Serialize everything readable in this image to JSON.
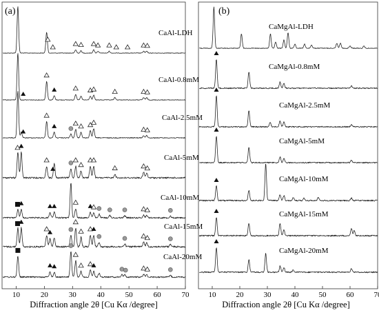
{
  "chart_data": [
    {
      "type": "line",
      "panel_label": "(a)",
      "xlabel": "Diffraction angle 2θ [Cu Kα /degree]",
      "xlim": [
        5,
        70
      ],
      "x_ticks": [
        10,
        20,
        30,
        40,
        50,
        60,
        70
      ],
      "y_ticks": false,
      "series": [
        {
          "name": "CaAl-LDH",
          "peaks": [
            {
              "x": 10.6,
              "h": 1.0
            },
            {
              "x": 20.8,
              "h": 0.45
            },
            {
              "x": 31.1,
              "h": 0.07
            },
            {
              "x": 33.0,
              "h": 0.05
            },
            {
              "x": 37.5,
              "h": 0.07
            },
            {
              "x": 39.0,
              "h": 0.04
            },
            {
              "x": 43.0,
              "h": 0.04
            },
            {
              "x": 55.2,
              "h": 0.04
            },
            {
              "x": 56.3,
              "h": 0.04
            }
          ]
        },
        {
          "name": "CaAl-0.8mM",
          "peaks": [
            {
              "x": 10.6,
              "h": 1.0
            },
            {
              "x": 20.8,
              "h": 0.4
            },
            {
              "x": 23.5,
              "h": 0.09
            },
            {
              "x": 31.1,
              "h": 0.12
            },
            {
              "x": 33.0,
              "h": 0.08
            },
            {
              "x": 36.3,
              "h": 0.08
            },
            {
              "x": 37.5,
              "h": 0.1
            },
            {
              "x": 45.0,
              "h": 0.05
            },
            {
              "x": 55.2,
              "h": 0.05
            },
            {
              "x": 56.3,
              "h": 0.05
            }
          ]
        },
        {
          "name": "CaAl-2.5mM",
          "peaks": [
            {
              "x": 10.6,
              "h": 1.0
            },
            {
              "x": 11.8,
              "h": 0.12
            },
            {
              "x": 20.8,
              "h": 0.35
            },
            {
              "x": 23.5,
              "h": 0.12
            },
            {
              "x": 29.4,
              "h": 0.08
            },
            {
              "x": 31.1,
              "h": 0.18
            },
            {
              "x": 33.0,
              "h": 0.12
            },
            {
              "x": 36.3,
              "h": 0.15
            },
            {
              "x": 37.5,
              "h": 0.2
            },
            {
              "x": 55.2,
              "h": 0.05
            },
            {
              "x": 56.3,
              "h": 0.05
            }
          ]
        },
        {
          "name": "CaAl-5mM",
          "peaks": [
            {
              "x": 10.6,
              "h": 0.55
            },
            {
              "x": 11.8,
              "h": 0.55
            },
            {
              "x": 20.8,
              "h": 0.25
            },
            {
              "x": 23.5,
              "h": 0.3
            },
            {
              "x": 29.4,
              "h": 0.2
            },
            {
              "x": 31.1,
              "h": 0.25
            },
            {
              "x": 33.0,
              "h": 0.15
            },
            {
              "x": 36.3,
              "h": 0.25
            },
            {
              "x": 37.5,
              "h": 0.25
            },
            {
              "x": 45.0,
              "h": 0.08
            },
            {
              "x": 55.2,
              "h": 0.12
            },
            {
              "x": 56.3,
              "h": 0.1
            }
          ]
        },
        {
          "name": "CaAl-10mM",
          "peaks": [
            {
              "x": 10.6,
              "h": 0.18
            },
            {
              "x": 11.8,
              "h": 0.18
            },
            {
              "x": 22.0,
              "h": 0.12
            },
            {
              "x": 23.5,
              "h": 0.12
            },
            {
              "x": 29.4,
              "h": 0.75
            },
            {
              "x": 31.1,
              "h": 0.2
            },
            {
              "x": 36.3,
              "h": 0.12
            },
            {
              "x": 37.5,
              "h": 0.1
            },
            {
              "x": 39.4,
              "h": 0.08
            },
            {
              "x": 43.2,
              "h": 0.05
            },
            {
              "x": 48.5,
              "h": 0.05
            },
            {
              "x": 55.2,
              "h": 0.06
            },
            {
              "x": 56.3,
              "h": 0.05
            },
            {
              "x": 64.7,
              "h": 0.04
            }
          ]
        },
        {
          "name": "CaAl-15mM",
          "peaks": [
            {
              "x": 10.6,
              "h": 0.4
            },
            {
              "x": 11.8,
              "h": 0.4
            },
            {
              "x": 20.8,
              "h": 0.25
            },
            {
              "x": 22.0,
              "h": 0.18
            },
            {
              "x": 23.5,
              "h": 0.2
            },
            {
              "x": 29.4,
              "h": 0.25
            },
            {
              "x": 31.1,
              "h": 0.4
            },
            {
              "x": 33.0,
              "h": 0.2
            },
            {
              "x": 36.3,
              "h": 0.25
            },
            {
              "x": 37.5,
              "h": 0.25
            },
            {
              "x": 39.4,
              "h": 0.1
            },
            {
              "x": 48.5,
              "h": 0.06
            },
            {
              "x": 55.2,
              "h": 0.1
            },
            {
              "x": 56.3,
              "h": 0.08
            },
            {
              "x": 64.7,
              "h": 0.05
            }
          ]
        },
        {
          "name": "CaAl-20mM",
          "peaks": [
            {
              "x": 10.6,
              "h": 0.45
            },
            {
              "x": 22.0,
              "h": 0.12
            },
            {
              "x": 23.5,
              "h": 0.1
            },
            {
              "x": 29.4,
              "h": 0.55
            },
            {
              "x": 31.1,
              "h": 0.35
            },
            {
              "x": 33.0,
              "h": 0.12
            },
            {
              "x": 36.3,
              "h": 0.15
            },
            {
              "x": 37.5,
              "h": 0.12
            },
            {
              "x": 39.4,
              "h": 0.08
            },
            {
              "x": 47.5,
              "h": 0.05
            },
            {
              "x": 48.5,
              "h": 0.05
            },
            {
              "x": 55.2,
              "h": 0.06
            },
            {
              "x": 56.3,
              "h": 0.05
            },
            {
              "x": 64.7,
              "h": 0.04
            }
          ]
        }
      ]
    },
    {
      "type": "line",
      "panel_label": "(b)",
      "xlabel": "Diffraction angle 2θ [Cu Kα /degree]",
      "xlim": [
        5,
        70
      ],
      "x_ticks": [
        10,
        20,
        30,
        40,
        50,
        60,
        70
      ],
      "y_ticks": false,
      "series": [
        {
          "name": "CaMgAl-LDH",
          "peaks": [
            {
              "x": 10.6,
              "h": 1.0
            },
            {
              "x": 20.6,
              "h": 0.35
            },
            {
              "x": 31.1,
              "h": 0.35
            },
            {
              "x": 33.0,
              "h": 0.15
            },
            {
              "x": 36.0,
              "h": 0.2
            },
            {
              "x": 37.5,
              "h": 0.38
            },
            {
              "x": 40.0,
              "h": 0.1
            },
            {
              "x": 43.5,
              "h": 0.1
            },
            {
              "x": 46.0,
              "h": 0.08
            },
            {
              "x": 55.2,
              "h": 0.12
            },
            {
              "x": 56.5,
              "h": 0.12
            },
            {
              "x": 60.0,
              "h": 0.06
            },
            {
              "x": 65.0,
              "h": 0.05
            }
          ]
        },
        {
          "name": "CaMgAl-0.8mM",
          "peaks": [
            {
              "x": 11.5,
              "h": 0.7
            },
            {
              "x": 23.3,
              "h": 0.4
            },
            {
              "x": 34.6,
              "h": 0.15
            },
            {
              "x": 36.0,
              "h": 0.12
            },
            {
              "x": 60.5,
              "h": 0.06
            }
          ]
        },
        {
          "name": "CaMgAl-2.5mM",
          "peaks": [
            {
              "x": 11.5,
              "h": 0.75
            },
            {
              "x": 23.3,
              "h": 0.4
            },
            {
              "x": 31.0,
              "h": 0.1
            },
            {
              "x": 34.6,
              "h": 0.15
            },
            {
              "x": 36.0,
              "h": 0.12
            },
            {
              "x": 60.5,
              "h": 0.06
            }
          ]
        },
        {
          "name": "CaMgAl-5mM",
          "peaks": [
            {
              "x": 11.5,
              "h": 0.65
            },
            {
              "x": 23.3,
              "h": 0.38
            },
            {
              "x": 34.6,
              "h": 0.14
            },
            {
              "x": 36.0,
              "h": 0.1
            },
            {
              "x": 60.5,
              "h": 0.06
            }
          ]
        },
        {
          "name": "CaMgAl-10mM",
          "peaks": [
            {
              "x": 11.5,
              "h": 0.35
            },
            {
              "x": 23.3,
              "h": 0.25
            },
            {
              "x": 29.4,
              "h": 0.9
            },
            {
              "x": 34.6,
              "h": 0.15
            },
            {
              "x": 36.0,
              "h": 0.12
            },
            {
              "x": 39.4,
              "h": 0.08
            },
            {
              "x": 43.2,
              "h": 0.06
            },
            {
              "x": 48.5,
              "h": 0.08
            },
            {
              "x": 60.5,
              "h": 0.06
            }
          ]
        },
        {
          "name": "CaMgAl-15mM",
          "peaks": [
            {
              "x": 11.5,
              "h": 0.45
            },
            {
              "x": 23.3,
              "h": 0.3
            },
            {
              "x": 34.6,
              "h": 0.3
            },
            {
              "x": 36.0,
              "h": 0.15
            },
            {
              "x": 60.5,
              "h": 0.18
            },
            {
              "x": 61.5,
              "h": 0.12
            }
          ]
        },
        {
          "name": "CaMgAl-20mM",
          "peaks": [
            {
              "x": 11.5,
              "h": 0.6
            },
            {
              "x": 23.3,
              "h": 0.3
            },
            {
              "x": 29.4,
              "h": 0.45
            },
            {
              "x": 34.6,
              "h": 0.15
            },
            {
              "x": 36.0,
              "h": 0.12
            },
            {
              "x": 39.4,
              "h": 0.06
            },
            {
              "x": 60.5,
              "h": 0.08
            }
          ]
        }
      ]
    }
  ],
  "markers_a": [
    {
      "series": 0,
      "x": 21.2,
      "shape": "open-triangle"
    },
    {
      "series": 0,
      "x": 23.0,
      "shape": "open-triangle"
    },
    {
      "series": 0,
      "x": 31.1,
      "shape": "open-triangle"
    },
    {
      "series": 0,
      "x": 33.0,
      "shape": "open-triangle"
    },
    {
      "series": 0,
      "x": 37.5,
      "shape": "open-triangle"
    },
    {
      "series": 0,
      "x": 39.0,
      "shape": "open-triangle"
    },
    {
      "series": 0,
      "x": 43.0,
      "shape": "open-triangle"
    },
    {
      "series": 0,
      "x": 45.5,
      "shape": "open-triangle"
    },
    {
      "series": 0,
      "x": 49.5,
      "shape": "open-triangle"
    },
    {
      "series": 0,
      "x": 55.2,
      "shape": "open-triangle"
    },
    {
      "series": 0,
      "x": 56.5,
      "shape": "open-triangle"
    },
    {
      "series": 1,
      "x": 12.5,
      "shape": "filled-triangle"
    },
    {
      "series": 1,
      "x": 20.8,
      "shape": "open-triangle"
    },
    {
      "series": 1,
      "x": 23.5,
      "shape": "filled-triangle"
    },
    {
      "series": 1,
      "x": 31.1,
      "shape": "open-triangle"
    },
    {
      "series": 1,
      "x": 36.3,
      "shape": "open-triangle"
    },
    {
      "series": 1,
      "x": 37.5,
      "shape": "open-triangle"
    },
    {
      "series": 1,
      "x": 45.0,
      "shape": "open-triangle"
    },
    {
      "series": 1,
      "x": 55.2,
      "shape": "open-triangle"
    },
    {
      "series": 1,
      "x": 56.5,
      "shape": "open-triangle"
    },
    {
      "series": 2,
      "x": 12.5,
      "shape": "filled-triangle"
    },
    {
      "series": 2,
      "x": 20.8,
      "shape": "open-triangle"
    },
    {
      "series": 2,
      "x": 23.5,
      "shape": "filled-triangle"
    },
    {
      "series": 2,
      "x": 29.4,
      "shape": "gray-circle"
    },
    {
      "series": 2,
      "x": 31.1,
      "shape": "open-triangle"
    },
    {
      "series": 2,
      "x": 33.0,
      "shape": "open-triangle"
    },
    {
      "series": 2,
      "x": 36.3,
      "shape": "open-triangle"
    },
    {
      "series": 2,
      "x": 37.5,
      "shape": "open-triangle"
    },
    {
      "series": 2,
      "x": 55.2,
      "shape": "open-triangle"
    },
    {
      "series": 2,
      "x": 56.5,
      "shape": "open-triangle"
    },
    {
      "series": 3,
      "x": 10.5,
      "shape": "open-triangle"
    },
    {
      "series": 3,
      "x": 11.8,
      "shape": "filled-triangle"
    },
    {
      "series": 3,
      "x": 20.8,
      "shape": "open-triangle"
    },
    {
      "series": 3,
      "x": 23.0,
      "shape": "filled-triangle"
    },
    {
      "series": 3,
      "x": 29.4,
      "shape": "gray-circle"
    },
    {
      "series": 3,
      "x": 31.1,
      "shape": "open-triangle"
    },
    {
      "series": 3,
      "x": 33.0,
      "shape": "open-triangle"
    },
    {
      "series": 3,
      "x": 36.3,
      "shape": "open-triangle"
    },
    {
      "series": 3,
      "x": 37.5,
      "shape": "open-triangle"
    },
    {
      "series": 3,
      "x": 45.0,
      "shape": "open-triangle"
    },
    {
      "series": 3,
      "x": 55.2,
      "shape": "open-triangle"
    },
    {
      "series": 3,
      "x": 56.5,
      "shape": "open-triangle"
    },
    {
      "series": 4,
      "x": 10.5,
      "shape": "filled-square"
    },
    {
      "series": 4,
      "x": 11.8,
      "shape": "filled-triangle"
    },
    {
      "series": 4,
      "x": 22.0,
      "shape": "filled-triangle"
    },
    {
      "series": 4,
      "x": 23.5,
      "shape": "filled-triangle"
    },
    {
      "series": 4,
      "x": 31.1,
      "shape": "open-triangle"
    },
    {
      "series": 4,
      "x": 36.3,
      "shape": "filled-triangle"
    },
    {
      "series": 4,
      "x": 37.5,
      "shape": "open-triangle"
    },
    {
      "series": 4,
      "x": 39.4,
      "shape": "gray-circle"
    },
    {
      "series": 4,
      "x": 43.2,
      "shape": "gray-circle"
    },
    {
      "series": 4,
      "x": 48.5,
      "shape": "gray-circle"
    },
    {
      "series": 4,
      "x": 55.2,
      "shape": "open-triangle"
    },
    {
      "series": 4,
      "x": 56.5,
      "shape": "open-triangle"
    },
    {
      "series": 4,
      "x": 64.7,
      "shape": "gray-circle"
    },
    {
      "series": 5,
      "x": 10.5,
      "shape": "filled-square"
    },
    {
      "series": 5,
      "x": 11.8,
      "shape": "filled-triangle"
    },
    {
      "series": 5,
      "x": 20.8,
      "shape": "open-triangle"
    },
    {
      "series": 5,
      "x": 22.0,
      "shape": "filled-triangle"
    },
    {
      "series": 5,
      "x": 29.4,
      "shape": "gray-circle"
    },
    {
      "series": 5,
      "x": 31.1,
      "shape": "open-triangle"
    },
    {
      "series": 5,
      "x": 33.0,
      "shape": "open-triangle"
    },
    {
      "series": 5,
      "x": 36.3,
      "shape": "open-triangle"
    },
    {
      "series": 5,
      "x": 37.5,
      "shape": "filled-triangle"
    },
    {
      "series": 5,
      "x": 39.4,
      "shape": "gray-circle"
    },
    {
      "series": 5,
      "x": 48.5,
      "shape": "gray-circle"
    },
    {
      "series": 5,
      "x": 55.2,
      "shape": "open-triangle"
    },
    {
      "series": 5,
      "x": 56.5,
      "shape": "open-triangle"
    },
    {
      "series": 5,
      "x": 64.7,
      "shape": "gray-circle"
    },
    {
      "series": 6,
      "x": 10.6,
      "shape": "filled-square"
    },
    {
      "series": 6,
      "x": 22.0,
      "shape": "filled-triangle"
    },
    {
      "series": 6,
      "x": 23.5,
      "shape": "filled-triangle"
    },
    {
      "series": 6,
      "x": 29.4,
      "shape": "gray-circle"
    },
    {
      "series": 6,
      "x": 31.1,
      "shape": "open-triangle"
    },
    {
      "series": 6,
      "x": 33.0,
      "shape": "open-triangle"
    },
    {
      "series": 6,
      "x": 36.3,
      "shape": "open-triangle"
    },
    {
      "series": 6,
      "x": 37.5,
      "shape": "filled-triangle"
    },
    {
      "series": 6,
      "x": 47.5,
      "shape": "gray-circle"
    },
    {
      "series": 6,
      "x": 48.8,
      "shape": "gray-circle"
    },
    {
      "series": 6,
      "x": 55.2,
      "shape": "open-triangle"
    },
    {
      "series": 6,
      "x": 56.5,
      "shape": "open-triangle"
    },
    {
      "series": 6,
      "x": 64.7,
      "shape": "gray-circle"
    }
  ],
  "markers_b": [
    {
      "series": 1,
      "x": 11.5,
      "shape": "filled-triangle"
    },
    {
      "series": 2,
      "x": 11.5,
      "shape": "filled-triangle"
    },
    {
      "series": 3,
      "x": 11.5,
      "shape": "filled-triangle"
    },
    {
      "series": 4,
      "x": 11.5,
      "shape": "filled-triangle"
    },
    {
      "series": 5,
      "x": 11.5,
      "shape": "filled-triangle"
    },
    {
      "series": 6,
      "x": 11.5,
      "shape": "filled-triangle"
    }
  ]
}
